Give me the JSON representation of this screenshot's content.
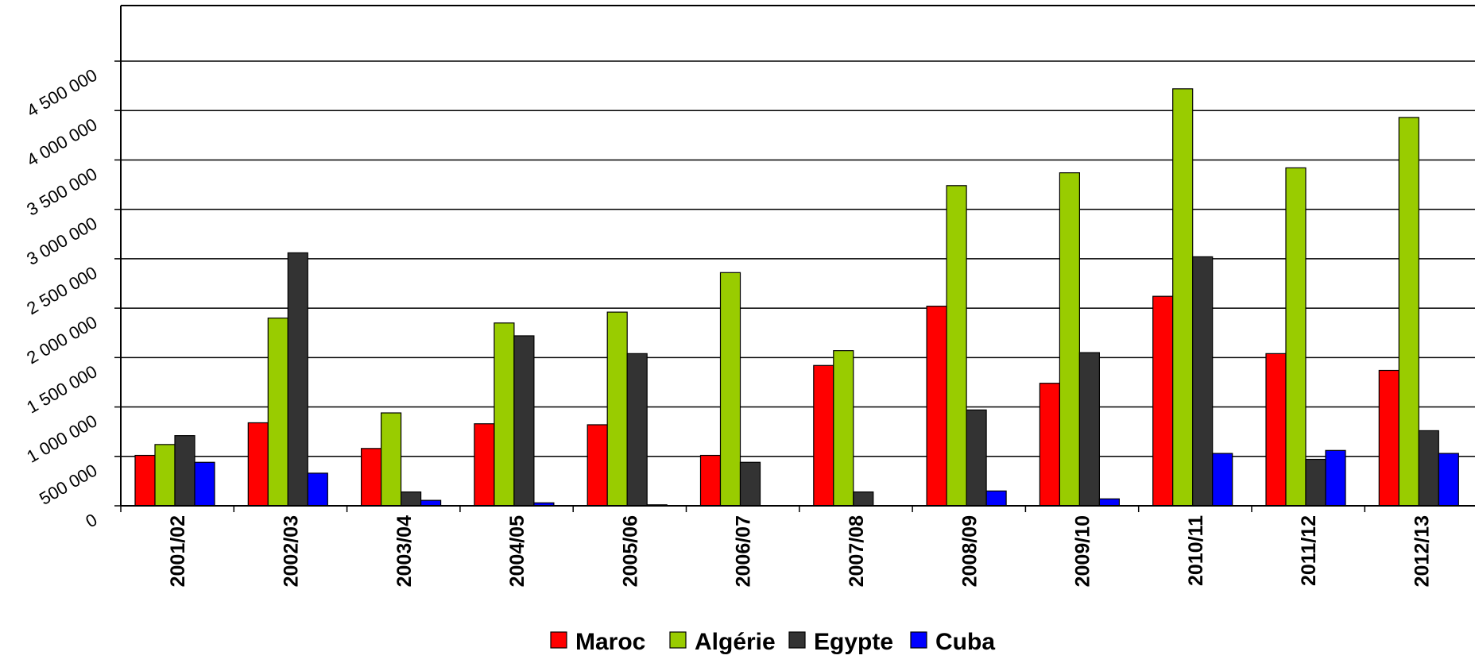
{
  "chart_data": {
    "type": "bar",
    "categories": [
      "2001/02",
      "2002/03",
      "2003/04",
      "2004/05",
      "2005/06",
      "2006/07",
      "2007/08",
      "2008/09",
      "2009/10",
      "2010/11",
      "2011/12",
      "2012/13"
    ],
    "y_tick_labels": [
      "0",
      "500 000",
      "1 000 000",
      "1 500 000",
      "2 000 000",
      "2 500 000",
      "3 000 000",
      "3 500 000",
      "4 000 000",
      "4 500 000"
    ],
    "ylim": [
      0,
      4500000
    ],
    "y_ticks": [
      0,
      500000,
      1000000,
      1500000,
      2000000,
      2500000,
      3000000,
      3500000,
      4000000,
      4500000
    ],
    "grid": true,
    "legend_position": "bottom",
    "series": [
      {
        "name": "Maroc",
        "color": "#ff0000",
        "values": [
          510000,
          840000,
          580000,
          830000,
          820000,
          510000,
          1420000,
          2020000,
          1240000,
          2120000,
          1540000,
          1370000
        ]
      },
      {
        "name": "Algérie",
        "color": "#99cc00",
        "values": [
          620000,
          1900000,
          940000,
          1850000,
          1960000,
          2360000,
          1570000,
          3240000,
          3370000,
          4220000,
          3420000,
          3930000
        ]
      },
      {
        "name": "Egypte",
        "color": "#333333",
        "values": [
          710000,
          2560000,
          140000,
          1720000,
          1540000,
          440000,
          140000,
          970000,
          1550000,
          2520000,
          470000,
          760000
        ]
      },
      {
        "name": "Cuba",
        "color": "#0000ff",
        "values": [
          440000,
          330000,
          55000,
          30000,
          10000,
          0,
          0,
          150000,
          70000,
          530000,
          560000,
          530000
        ]
      }
    ]
  }
}
